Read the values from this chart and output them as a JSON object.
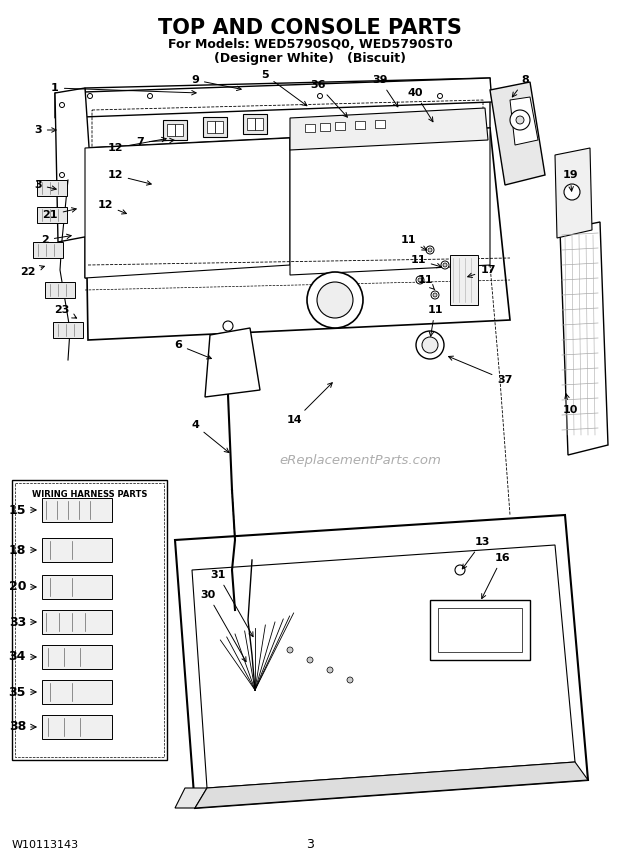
{
  "title": "TOP AND CONSOLE PARTS",
  "subtitle1": "For Models: WED5790SQ0, WED5790ST0",
  "subtitle2": "(Designer White)   (Biscuit)",
  "footer_left": "W10113143",
  "footer_center": "3",
  "watermark": "eReplacementParts.com",
  "bg_color": "#ffffff",
  "lc": "#000000",
  "gc": "#666666",
  "lgc": "#aaaaaa",
  "wiring_box_label": "WIRING HARNESS PARTS",
  "wiring_parts_y": [
    510,
    550,
    587,
    622,
    657,
    692,
    727
  ],
  "wiring_parts_nums": [
    15,
    18,
    20,
    33,
    34,
    35,
    38
  ]
}
